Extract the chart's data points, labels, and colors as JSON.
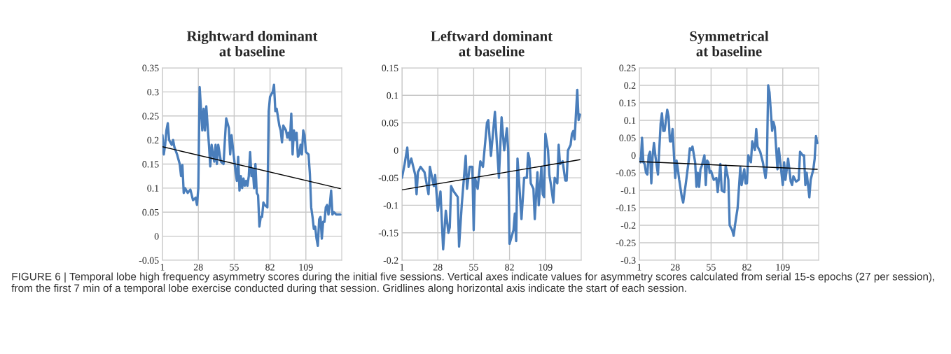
{
  "chart_data": [
    {
      "type": "line",
      "title": "Rightward dominant\nat baseline",
      "xlim": [
        1,
        136
      ],
      "xticks": [
        1,
        28,
        55,
        82,
        109
      ],
      "ylim": [
        -0.05,
        0.35
      ],
      "yticks": [
        -0.05,
        0,
        0.05,
        0.1,
        0.15,
        0.2,
        0.25,
        0.3,
        0.35
      ],
      "grid": true,
      "line_style": "solid",
      "annotations": [
        "FIGURE 6 | Temporal lobe high frequency asymmetry scores during the initial five sessions. Vertical axes indicate values for asymmetry scores calculated from serial 15-s epochs (27 per session), from the first 7 min of a temporal lobe exercise conducted during that session. Gridlines along horizontal axis indicate the start of each session."
      ],
      "series": [
        {
          "color": "#4a7ebb",
          "x": [
            1,
            2,
            3,
            4,
            5,
            6,
            8,
            9,
            10,
            12,
            14,
            15,
            16,
            17,
            18,
            20,
            22,
            24,
            26,
            27,
            28,
            29,
            31,
            32,
            33,
            34,
            36,
            37,
            38,
            40,
            41,
            42,
            43,
            45,
            47,
            48,
            49,
            51,
            52,
            53,
            55,
            56,
            57,
            58,
            59,
            60,
            61,
            62,
            63,
            64,
            65,
            66,
            67,
            68,
            69,
            70,
            71,
            72,
            73,
            74,
            75,
            76,
            77,
            78,
            80,
            81,
            82,
            84,
            85,
            86,
            87,
            89,
            90,
            91,
            92,
            94,
            95,
            96,
            97,
            98,
            99,
            100,
            101,
            102,
            103,
            104,
            105,
            106,
            107,
            108,
            109,
            111,
            112,
            113,
            114,
            115,
            116,
            117,
            118,
            119,
            120,
            121,
            122,
            123,
            124,
            125,
            126,
            127,
            128,
            129,
            130,
            132,
            135
          ],
          "values": [
            0.21,
            0.17,
            0.19,
            0.22,
            0.235,
            0.2,
            0.19,
            0.2,
            0.185,
            0.17,
            0.15,
            0.125,
            0.148,
            0.09,
            0.1,
            0.09,
            0.097,
            0.075,
            0.08,
            0.065,
            0.1,
            0.31,
            0.22,
            0.265,
            0.22,
            0.27,
            0.19,
            0.145,
            0.19,
            0.155,
            0.19,
            0.15,
            0.19,
            0.155,
            0.15,
            0.2,
            0.245,
            0.225,
            0.17,
            0.21,
            0.16,
            0.135,
            0.115,
            0.165,
            0.095,
            0.125,
            0.1,
            0.12,
            0.105,
            0.115,
            0.105,
            0.125,
            0.175,
            0.125,
            0.14,
            0.1,
            0.15,
            0.09,
            0.085,
            0.02,
            0.04,
            0.04,
            0.07,
            0.065,
            0.06,
            0.26,
            0.29,
            0.3,
            0.315,
            0.26,
            0.265,
            0.23,
            0.22,
            0.195,
            0.23,
            0.22,
            0.205,
            0.215,
            0.2,
            0.255,
            0.17,
            0.22,
            0.2,
            0.215,
            0.165,
            0.17,
            0.19,
            0.17,
            0.22,
            0.21,
            0.175,
            0.17,
            0.13,
            0.06,
            0.04,
            0.015,
            0.02,
            -0.005,
            -0.02,
            0.035,
            0.04,
            -0.005,
            0.03,
            0.03,
            0.06,
            0.065,
            0.045,
            0.065,
            0.095,
            0.045,
            0.05,
            0.045,
            0.045
          ]
        },
        {
          "color": "#000000",
          "x": [
            1,
            135
          ],
          "values": [
            0.186,
            0.099
          ]
        }
      ]
    },
    {
      "type": "line",
      "title": "Leftward dominant\nat baseline",
      "xlim": [
        1,
        136
      ],
      "xticks": [
        1,
        28,
        55,
        82,
        109
      ],
      "ylim": [
        -0.2,
        0.15
      ],
      "yticks": [
        -0.2,
        -0.15,
        -0.1,
        -0.05,
        0,
        0.05,
        0.1,
        0.15
      ],
      "grid": true,
      "line_style": "solid",
      "series": [
        {
          "color": "#4a7ebb",
          "x": [
            1,
            3,
            5,
            6,
            8,
            11,
            12,
            13,
            15,
            18,
            21,
            22,
            25,
            26,
            28,
            30,
            32,
            34,
            36,
            37,
            38,
            40,
            43,
            44,
            46,
            49,
            50,
            52,
            54,
            55,
            56,
            58,
            60,
            62,
            65,
            66,
            68,
            71,
            74,
            76,
            78,
            79,
            80,
            81,
            82,
            85,
            86,
            87,
            88,
            89,
            91,
            93,
            95,
            96,
            97,
            98,
            100,
            101,
            103,
            104,
            106,
            107,
            108,
            109,
            111,
            112,
            113,
            115,
            116,
            118,
            119,
            120,
            122,
            124,
            125,
            126,
            128,
            129,
            130,
            131,
            133,
            134,
            135
          ],
          "values": [
            -0.05,
            -0.025,
            0.005,
            -0.03,
            -0.015,
            -0.045,
            -0.08,
            -0.04,
            -0.03,
            -0.04,
            -0.08,
            -0.03,
            -0.065,
            -0.045,
            -0.11,
            -0.075,
            -0.18,
            -0.11,
            -0.15,
            -0.14,
            -0.065,
            -0.075,
            -0.085,
            -0.175,
            -0.1,
            -0.01,
            -0.07,
            -0.03,
            -0.03,
            -0.145,
            -0.05,
            -0.07,
            -0.02,
            -0.03,
            0.05,
            0.055,
            -0.01,
            0.07,
            -0.05,
            0.06,
            0.0,
            0.02,
            0.04,
            0.0,
            -0.17,
            -0.145,
            -0.115,
            -0.165,
            -0.015,
            -0.05,
            -0.125,
            -0.05,
            -0.05,
            -0.005,
            -0.015,
            -0.06,
            -0.07,
            -0.125,
            -0.04,
            -0.1,
            -0.03,
            -0.08,
            -0.085,
            0.03,
            0.0,
            -0.045,
            -0.06,
            -0.095,
            -0.05,
            -0.06,
            0.01,
            -0.025,
            -0.02,
            -0.055,
            -0.055,
            0.0,
            0.01,
            0.03,
            0.035,
            0.02,
            0.11,
            0.055,
            0.065
          ]
        },
        {
          "color": "#000000",
          "x": [
            1,
            135
          ],
          "values": [
            -0.072,
            -0.017
          ]
        }
      ]
    },
    {
      "type": "line",
      "title": "Symmetrical\nat baseline",
      "xlim": [
        1,
        136
      ],
      "xticks": [
        1,
        28,
        55,
        82,
        109
      ],
      "ylim": [
        -0.3,
        0.25
      ],
      "yticks": [
        -0.3,
        -0.25,
        -0.2,
        -0.15,
        -0.1,
        -0.05,
        0,
        0.05,
        0.1,
        0.15,
        0.2,
        0.25
      ],
      "grid": true,
      "line_style": "solid",
      "series": [
        {
          "color": "#4a7ebb",
          "x": [
            1,
            2,
            3,
            4,
            5,
            6,
            7,
            8,
            9,
            10,
            11,
            12,
            13,
            15,
            17,
            18,
            19,
            20,
            22,
            23,
            24,
            25,
            26,
            28,
            29,
            30,
            31,
            33,
            34,
            36,
            38,
            39,
            40,
            41,
            43,
            44,
            45,
            46,
            47,
            48,
            50,
            51,
            52,
            53,
            54,
            55,
            57,
            59,
            60,
            62,
            63,
            65,
            66,
            68,
            69,
            71,
            72,
            73,
            75,
            77,
            78,
            80,
            81,
            82,
            83,
            85,
            86,
            88,
            89,
            90,
            92,
            94,
            96,
            97,
            98,
            99,
            101,
            102,
            103,
            105,
            106,
            108,
            109,
            110,
            111,
            113,
            115,
            116,
            117,
            119,
            121,
            122,
            124,
            125,
            126,
            127,
            129,
            130,
            132,
            133,
            134,
            135
          ],
          "values": [
            -0.01,
            -0.02,
            0.05,
            -0.02,
            -0.025,
            -0.05,
            -0.055,
            0.0,
            0.01,
            -0.08,
            0.0,
            0.035,
            0.0,
            -0.055,
            0.09,
            0.12,
            0.07,
            0.07,
            0.13,
            0.11,
            0.04,
            0.04,
            0.075,
            -0.065,
            -0.015,
            -0.04,
            -0.07,
            -0.12,
            -0.135,
            -0.08,
            -0.02,
            0.02,
            0.015,
            0.025,
            -0.02,
            -0.09,
            -0.05,
            -0.09,
            -0.04,
            -0.03,
            0.0,
            -0.085,
            -0.015,
            -0.02,
            -0.05,
            -0.045,
            -0.07,
            -0.065,
            -0.105,
            -0.025,
            -0.1,
            -0.105,
            -0.03,
            -0.07,
            -0.2,
            -0.215,
            -0.23,
            -0.2,
            -0.15,
            -0.035,
            -0.085,
            -0.04,
            -0.08,
            -0.08,
            0.0,
            -0.02,
            0.04,
            0.015,
            0.075,
            0.025,
            0.01,
            -0.02,
            -0.065,
            -0.03,
            0.2,
            0.18,
            0.07,
            0.095,
            0.08,
            -0.04,
            0.02,
            -0.05,
            -0.085,
            -0.02,
            -0.07,
            -0.01,
            -0.075,
            -0.085,
            -0.06,
            -0.075,
            -0.07,
            0.01,
            0.0,
            0.0,
            -0.085,
            -0.05,
            -0.12,
            -0.07,
            -0.04,
            -0.01,
            0.055,
            0.035
          ]
        },
        {
          "color": "#000000",
          "x": [
            1,
            135
          ],
          "values": [
            -0.018,
            -0.04
          ]
        }
      ]
    }
  ]
}
